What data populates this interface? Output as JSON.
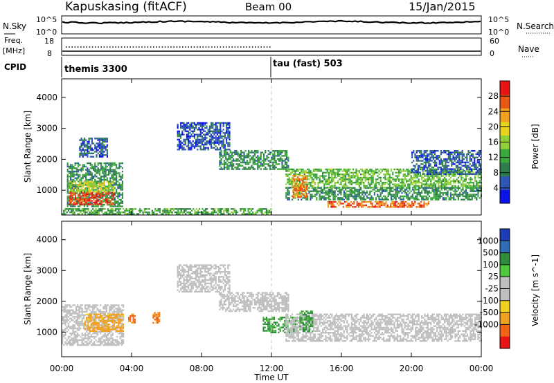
{
  "header": {
    "station": "Kapuskasing (fitACF)",
    "beam": "Beam 00",
    "date": "15/Jan/2015"
  },
  "noise_panel": {
    "left_label": "N.Sky",
    "left_ticks": [
      "10^5",
      "10^0"
    ],
    "right_label": "N.Search",
    "right_ticks": [
      "10^5",
      "10^0"
    ]
  },
  "freq_panel": {
    "left_label_top": "Freq.",
    "left_label_unit": "[MHz]",
    "left_ticks": [
      "18",
      "8"
    ],
    "right_label": "Nave",
    "right_ticks": [
      "60",
      "0"
    ]
  },
  "cpid_panel": {
    "label": "CPID",
    "segments": [
      {
        "text": "themis 3300",
        "start_hour": 0
      },
      {
        "text": "tau (fast) 503",
        "start_hour": 12
      }
    ]
  },
  "colors": {
    "power_scale": [
      "#0a14e6",
      "#2f55b5",
      "#2f7d4a",
      "#3aa83a",
      "#8fcf3a",
      "#e6d21e",
      "#f0a020",
      "#e85a14",
      "#e61414"
    ],
    "velocity_scale": [
      "#e61414",
      "#f06414",
      "#f0a020",
      "#f0d21e",
      "#bebebe",
      "#bebebe",
      "#50c83c",
      "#2f8c3c",
      "#2f6eb4",
      "#1e3cb4"
    ]
  },
  "chart_data": [
    {
      "type": "heatmap",
      "title": "Power",
      "xlabel": "",
      "ylabel": "Slant Range [km]",
      "x_ticks": [
        "00:00",
        "04:00",
        "08:00",
        "12:00",
        "16:00",
        "20:00",
        "00:00"
      ],
      "y_ticks": [
        "1000",
        "2000",
        "3000",
        "4000"
      ],
      "ylim": [
        200,
        4600
      ],
      "xlim": [
        0,
        24
      ],
      "colorbar": {
        "label": "Power [dB]",
        "ticks": [
          "4",
          "8",
          "12",
          "16",
          "20",
          "24",
          "28"
        ],
        "range": [
          0,
          32
        ]
      },
      "regions": [
        {
          "x0": 0.3,
          "x1": 3.5,
          "y0": 500,
          "y1": 1900,
          "value": 10
        },
        {
          "x0": 0.4,
          "x1": 3.0,
          "y0": 550,
          "y1": 950,
          "value": 28
        },
        {
          "x0": 0.4,
          "x1": 3.0,
          "y0": 950,
          "y1": 1300,
          "value": 18
        },
        {
          "x0": 1.0,
          "x1": 2.6,
          "y0": 2100,
          "y1": 2700,
          "value": 6
        },
        {
          "x0": 6.6,
          "x1": 9.6,
          "y0": 2300,
          "y1": 3200,
          "value": 5
        },
        {
          "x0": 9.0,
          "x1": 13.0,
          "y0": 1700,
          "y1": 2300,
          "value": 10
        },
        {
          "x0": 12.8,
          "x1": 24.0,
          "y0": 1100,
          "y1": 1700,
          "value": 14
        },
        {
          "x0": 12.8,
          "x1": 24.0,
          "y0": 700,
          "y1": 1100,
          "value": 10
        },
        {
          "x0": 13.2,
          "x1": 14.0,
          "y0": 800,
          "y1": 1500,
          "value": 24
        },
        {
          "x0": 15.2,
          "x1": 21.0,
          "y0": 450,
          "y1": 650,
          "value": 26
        },
        {
          "x0": 20.0,
          "x1": 24.0,
          "y0": 1500,
          "y1": 2300,
          "value": 6
        },
        {
          "x0": 0.0,
          "x1": 12.0,
          "y0": 220,
          "y1": 420,
          "value": 12
        }
      ]
    },
    {
      "type": "heatmap",
      "title": "Velocity",
      "xlabel": "Time UT",
      "ylabel": "Slant Range [km]",
      "x_ticks": [
        "00:00",
        "04:00",
        "08:00",
        "12:00",
        "16:00",
        "20:00",
        "00:00"
      ],
      "y_ticks": [
        "1000",
        "2000",
        "3000",
        "4000"
      ],
      "ylim": [
        200,
        4600
      ],
      "xlim": [
        0,
        24
      ],
      "colorbar": {
        "label": "Velocity [m s^-1]",
        "ticks": [
          "1000",
          "500",
          "100",
          "25",
          "-25",
          "-100",
          "-500",
          "-1000"
        ]
      },
      "regions": [
        {
          "x0": 0.0,
          "x1": 3.5,
          "y0": 600,
          "y1": 1900,
          "value": 0
        },
        {
          "x0": 1.3,
          "x1": 3.5,
          "y0": 1050,
          "y1": 1600,
          "value": -150
        },
        {
          "x0": 3.8,
          "x1": 4.2,
          "y0": 1300,
          "y1": 1600,
          "value": -600
        },
        {
          "x0": 5.2,
          "x1": 5.6,
          "y0": 1300,
          "y1": 1650,
          "value": -600
        },
        {
          "x0": 6.6,
          "x1": 9.6,
          "y0": 2300,
          "y1": 3200,
          "value": 0
        },
        {
          "x0": 9.0,
          "x1": 13.0,
          "y0": 1700,
          "y1": 2300,
          "value": 0
        },
        {
          "x0": 11.5,
          "x1": 13.5,
          "y0": 1000,
          "y1": 1500,
          "value": 120
        },
        {
          "x0": 12.8,
          "x1": 24.0,
          "y0": 700,
          "y1": 1600,
          "value": 0
        },
        {
          "x0": 13.6,
          "x1": 14.3,
          "y0": 1000,
          "y1": 1700,
          "value": 120
        }
      ]
    }
  ]
}
